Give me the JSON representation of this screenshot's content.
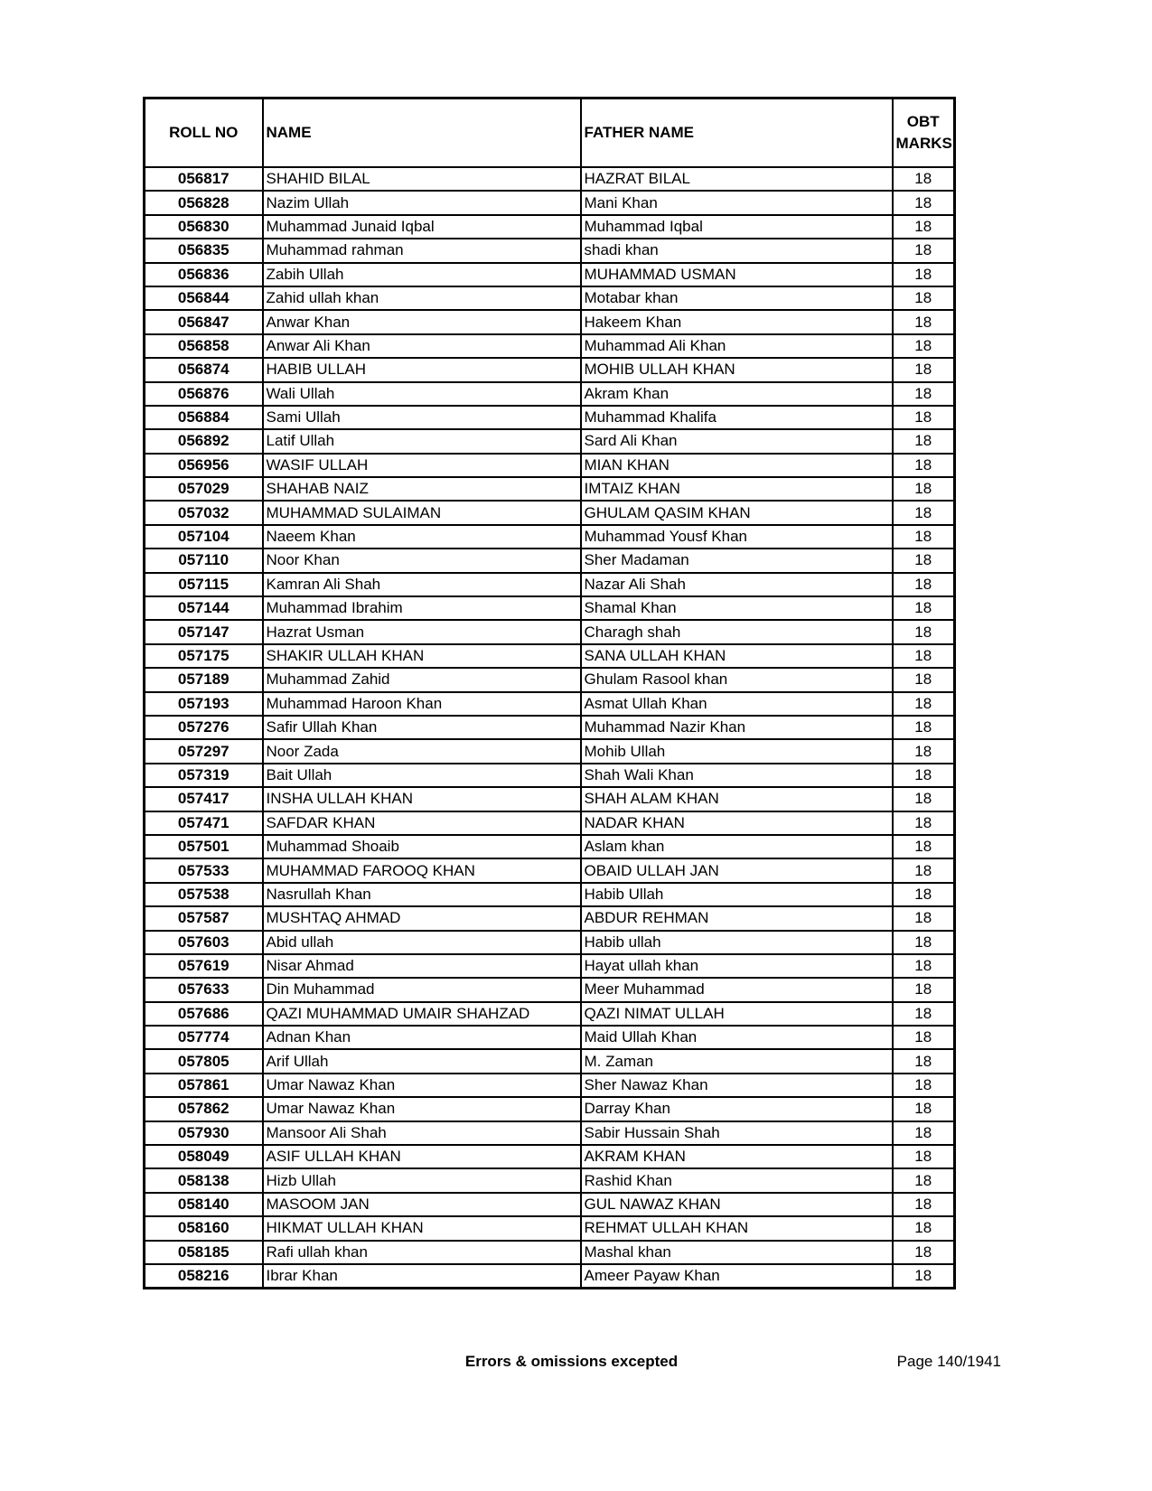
{
  "table": {
    "headers": {
      "roll": "ROLL NO",
      "name": "NAME",
      "father": "FATHER NAME",
      "marks_line1": "OBT",
      "marks_line2": "MARKS"
    },
    "rows": [
      [
        "056817",
        "SHAHID BILAL",
        "HAZRAT BILAL",
        "18"
      ],
      [
        "056828",
        "Nazim Ullah",
        "Mani Khan",
        "18"
      ],
      [
        "056830",
        "Muhammad Junaid Iqbal",
        "Muhammad Iqbal",
        "18"
      ],
      [
        "056835",
        "Muhammad rahman",
        "shadi khan",
        "18"
      ],
      [
        "056836",
        "Zabih Ullah",
        "MUHAMMAD USMAN",
        "18"
      ],
      [
        "056844",
        "Zahid ullah khan",
        "Motabar khan",
        "18"
      ],
      [
        "056847",
        "Anwar Khan",
        "Hakeem Khan",
        "18"
      ],
      [
        "056858",
        "Anwar Ali Khan",
        "Muhammad Ali Khan",
        "18"
      ],
      [
        "056874",
        "HABIB ULLAH",
        "MOHIB ULLAH KHAN",
        "18"
      ],
      [
        "056876",
        "Wali Ullah",
        "Akram Khan",
        "18"
      ],
      [
        "056884",
        "Sami Ullah",
        "Muhammad Khalifa",
        "18"
      ],
      [
        "056892",
        "Latif Ullah",
        "Sard Ali Khan",
        "18"
      ],
      [
        "056956",
        "WASIF ULLAH",
        "MIAN KHAN",
        "18"
      ],
      [
        "057029",
        "SHAHAB NAIZ",
        "IMTAIZ KHAN",
        "18"
      ],
      [
        "057032",
        "MUHAMMAD SULAIMAN",
        "GHULAM QASIM KHAN",
        "18"
      ],
      [
        "057104",
        "Naeem Khan",
        "Muhammad Yousf Khan",
        "18"
      ],
      [
        "057110",
        "Noor Khan",
        "Sher Madaman",
        "18"
      ],
      [
        "057115",
        "Kamran Ali Shah",
        "Nazar Ali Shah",
        "18"
      ],
      [
        "057144",
        "Muhammad Ibrahim",
        "Shamal Khan",
        "18"
      ],
      [
        "057147",
        "Hazrat Usman",
        "Charagh shah",
        "18"
      ],
      [
        "057175",
        "SHAKIR ULLAH KHAN",
        "SANA ULLAH KHAN",
        "18"
      ],
      [
        "057189",
        "Muhammad Zahid",
        "Ghulam Rasool khan",
        "18"
      ],
      [
        "057193",
        "Muhammad Haroon Khan",
        "Asmat Ullah Khan",
        "18"
      ],
      [
        "057276",
        "Safir Ullah Khan",
        "Muhammad Nazir Khan",
        "18"
      ],
      [
        "057297",
        "Noor Zada",
        "Mohib Ullah",
        "18"
      ],
      [
        "057319",
        "Bait Ullah",
        "Shah Wali Khan",
        "18"
      ],
      [
        "057417",
        "INSHA ULLAH KHAN",
        "SHAH ALAM KHAN",
        "18"
      ],
      [
        "057471",
        "SAFDAR KHAN",
        "NADAR KHAN",
        "18"
      ],
      [
        "057501",
        "Muhammad Shoaib",
        "Aslam khan",
        "18"
      ],
      [
        "057533",
        "MUHAMMAD FAROOQ KHAN",
        "OBAID ULLAH JAN",
        "18"
      ],
      [
        "057538",
        "Nasrullah Khan",
        "Habib Ullah",
        "18"
      ],
      [
        "057587",
        "MUSHTAQ AHMAD",
        "ABDUR REHMAN",
        "18"
      ],
      [
        "057603",
        "Abid ullah",
        "Habib ullah",
        "18"
      ],
      [
        "057619",
        "Nisar Ahmad",
        "Hayat ullah khan",
        "18"
      ],
      [
        "057633",
        "Din Muhammad",
        "Meer Muhammad",
        "18"
      ],
      [
        "057686",
        "QAZI MUHAMMAD UMAIR SHAHZAD",
        "QAZI NIMAT ULLAH",
        "18"
      ],
      [
        "057774",
        "Adnan Khan",
        "Maid Ullah Khan",
        "18"
      ],
      [
        "057805",
        "Arif Ullah",
        "M. Zaman",
        "18"
      ],
      [
        "057861",
        "Umar Nawaz Khan",
        "Sher Nawaz Khan",
        "18"
      ],
      [
        "057862",
        "Umar Nawaz Khan",
        "Darray Khan",
        "18"
      ],
      [
        "057930",
        "Mansoor Ali Shah",
        "Sabir Hussain Shah",
        "18"
      ],
      [
        "058049",
        "ASIF ULLAH KHAN",
        "AKRAM KHAN",
        "18"
      ],
      [
        "058138",
        "Hizb Ullah",
        "Rashid Khan",
        "18"
      ],
      [
        "058140",
        "MASOOM JAN",
        "GUL NAWAZ KHAN",
        "18"
      ],
      [
        "058160",
        "HIKMAT ULLAH KHAN",
        "REHMAT ULLAH KHAN",
        "18"
      ],
      [
        "058185",
        "Rafi ullah khan",
        "Mashal khan",
        "18"
      ],
      [
        "058216",
        "Ibrar Khan",
        "Ameer Payaw Khan",
        "18"
      ]
    ]
  },
  "footer": {
    "note": "Errors & omissions excepted",
    "page": "Page 140/1941"
  }
}
